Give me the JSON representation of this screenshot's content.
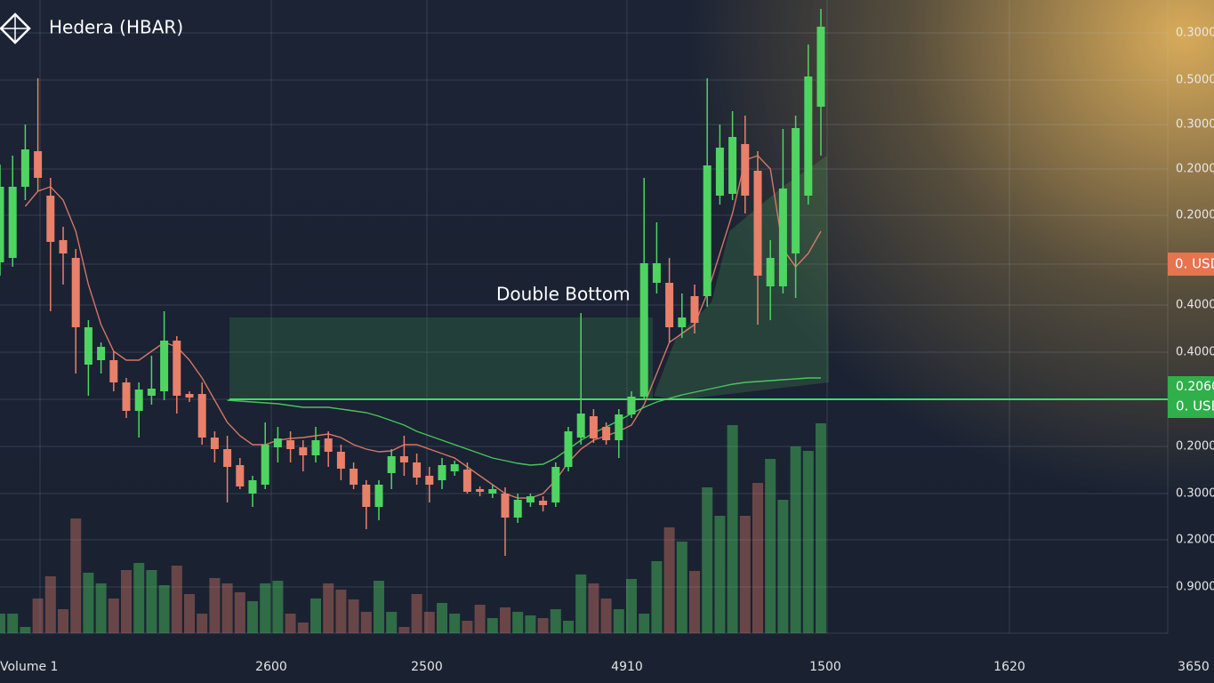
{
  "chart_data": {
    "type": "candlestick",
    "title": "Hedera (HBAR)",
    "annotation": "Double Bottom",
    "x_axis_labels": [
      "Volume 1",
      "2600",
      "2500",
      "4910",
      "1500",
      "1620",
      "3650"
    ],
    "price_axis_labels": [
      "0.3000",
      "0.5000",
      "0.3000",
      "0.2000",
      "0.2000",
      "0.4000",
      "0.4000",
      "0.2000",
      "0.3000",
      "0.2000",
      "0.9000"
    ],
    "badges": {
      "current": "0. USD",
      "level": "0.2060",
      "level_unit": "0. USD"
    },
    "current_price": 41.5,
    "support_level": 26.3,
    "ylim": [
      0,
      71.2
    ],
    "volume_ylim": [
      0,
      71.2
    ],
    "grid": true,
    "up_color": "#4fd461",
    "down_color": "#e8806a",
    "candles": {
      "open": [
        41.7,
        42.2,
        50.2,
        54.2,
        49.2,
        44.2,
        42.2,
        30.2,
        30.7,
        30.7,
        28.2,
        25.0,
        26.7,
        27.2,
        32.9,
        26.9,
        26.9,
        22.0,
        20.7,
        18.9,
        15.7,
        16.7,
        20.9,
        21.7,
        20.9,
        20.0,
        21.9,
        20.4,
        18.5,
        16.7,
        14.2,
        18.0,
        19.9,
        19.2,
        17.7,
        17.2,
        18.2,
        18.4,
        16.2,
        15.7,
        15.7,
        13.0,
        14.7,
        14.9,
        14.7,
        18.7,
        22.0,
        24.4,
        23.2,
        21.7,
        24.6,
        26.6,
        39.4,
        39.4,
        34.4,
        37.9,
        37.9,
        49.2,
        49.4,
        55.0,
        52.0,
        39.0,
        39.0,
        42.7,
        49.2,
        59.2
      ],
      "close": [
        50.2,
        50.2,
        54.4,
        51.2,
        44.0,
        42.7,
        34.4,
        34.4,
        32.2,
        28.2,
        25.0,
        27.4,
        27.5,
        32.9,
        26.7,
        26.5,
        22.0,
        20.7,
        18.7,
        16.5,
        17.2,
        21.2,
        21.9,
        20.7,
        20.0,
        21.7,
        20.4,
        18.5,
        16.7,
        14.2,
        16.7,
        19.9,
        19.2,
        17.5,
        16.7,
        18.9,
        19.0,
        15.9,
        15.9,
        16.2,
        13.0,
        15.0,
        15.4,
        14.4,
        18.7,
        22.7,
        24.7,
        21.9,
        21.7,
        24.6,
        26.6,
        41.6,
        41.6,
        34.4,
        35.5,
        34.9,
        52.6,
        54.6,
        55.8,
        49.2,
        40.2,
        42.2,
        50.0,
        56.8,
        62.6,
        68.2
      ],
      "high": [
        52.7,
        53.7,
        57.2,
        62.4,
        51.2,
        45.7,
        43.2,
        35.2,
        32.7,
        31.7,
        28.7,
        28.2,
        31.2,
        36.2,
        33.4,
        27.2,
        28.2,
        22.7,
        22.2,
        19.7,
        17.7,
        23.7,
        23.2,
        22.7,
        21.7,
        23.2,
        22.7,
        21.2,
        19.2,
        17.2,
        17.2,
        20.7,
        22.2,
        20.2,
        18.7,
        19.7,
        19.4,
        19.2,
        16.5,
        16.7,
        16.4,
        15.7,
        15.7,
        15.4,
        19.2,
        23.2,
        36.0,
        25.2,
        23.7,
        25.2,
        27.2,
        51.2,
        46.2,
        42.2,
        38.2,
        39.2,
        62.4,
        57.2,
        58.7,
        58.2,
        54.2,
        44.2,
        56.7,
        58.2,
        66.2,
        70.2
      ],
      "low": [
        40.2,
        41.2,
        48.7,
        49.7,
        36.2,
        39.2,
        29.2,
        26.7,
        29.2,
        27.2,
        24.2,
        22.0,
        25.7,
        26.2,
        24.7,
        26.0,
        21.2,
        19.2,
        14.7,
        16.2,
        14.2,
        16.2,
        19.2,
        19.2,
        18.2,
        19.2,
        18.7,
        17.2,
        16.2,
        11.7,
        12.7,
        16.2,
        17.7,
        16.7,
        14.7,
        16.2,
        17.7,
        15.7,
        15.4,
        15.2,
        8.7,
        12.4,
        14.2,
        13.7,
        14.2,
        18.2,
        21.2,
        21.4,
        21.2,
        19.7,
        24.2,
        26.2,
        38.2,
        32.7,
        33.2,
        33.7,
        36.7,
        48.2,
        48.7,
        47.2,
        34.7,
        35.2,
        38.2,
        37.7,
        48.2,
        53.7
      ]
    },
    "volume": [
      2.2,
      2.2,
      0.7,
      3.9,
      6.4,
      2.7,
      12.9,
      6.8,
      5.6,
      3.9,
      7.1,
      7.9,
      7.1,
      5.4,
      7.6,
      4.4,
      2.2,
      6.2,
      5.6,
      4.6,
      3.6,
      5.6,
      5.9,
      2.2,
      1.2,
      3.9,
      5.6,
      4.9,
      3.8,
      2.4,
      5.9,
      2.4,
      0.7,
      4.4,
      2.4,
      3.4,
      2.2,
      1.4,
      3.2,
      1.7,
      2.9,
      2.4,
      2.0,
      1.7,
      2.7,
      1.4,
      6.6,
      5.6,
      3.9,
      2.7,
      6.1,
      2.2,
      8.1,
      11.9,
      10.3,
      7.0,
      16.4,
      13.2,
      23.4,
      13.2,
      16.9,
      19.6,
      15.0,
      21.0,
      20.5,
      23.6
    ],
    "moving_averages": [
      {
        "color": "#e8806a",
        "values": [
          null,
          null,
          48.0,
          49.7,
          50.2,
          48.7,
          45.2,
          39.2,
          34.7,
          31.7,
          30.7,
          30.7,
          31.7,
          32.7,
          32.2,
          30.7,
          28.7,
          26.2,
          23.7,
          22.2,
          21.2,
          21.2,
          21.7,
          21.9,
          22.0,
          22.2,
          22.4,
          22.0,
          21.2,
          20.7,
          20.4,
          20.5,
          21.2,
          21.2,
          20.7,
          20.2,
          19.7,
          18.7,
          17.7,
          16.7,
          15.7,
          15.2,
          15.2,
          15.7,
          17.2,
          19.2,
          20.7,
          21.7,
          22.2,
          22.7,
          23.4,
          25.7,
          29.2,
          32.7,
          33.7,
          34.7,
          38.2,
          42.7,
          47.2,
          53.2,
          53.7,
          52.2,
          43.2,
          41.2,
          42.7,
          45.2
        ]
      },
      {
        "color": "#4fd461",
        "values": [
          null,
          null,
          null,
          null,
          null,
          null,
          null,
          null,
          null,
          null,
          null,
          null,
          null,
          null,
          null,
          null,
          null,
          null,
          26.2,
          26.1,
          26.0,
          25.9,
          25.8,
          25.6,
          25.4,
          25.4,
          25.4,
          25.2,
          25.0,
          24.8,
          24.4,
          23.9,
          23.4,
          22.7,
          22.2,
          21.7,
          21.2,
          20.7,
          20.2,
          19.7,
          19.4,
          19.1,
          18.9,
          19.0,
          19.7,
          20.7,
          21.7,
          22.5,
          23.2,
          23.9,
          24.7,
          25.4,
          26.0,
          26.4,
          26.8,
          27.1,
          27.4,
          27.7,
          28.0,
          28.2,
          28.3,
          28.4,
          28.5,
          28.6,
          28.7,
          28.7
        ]
      }
    ]
  }
}
